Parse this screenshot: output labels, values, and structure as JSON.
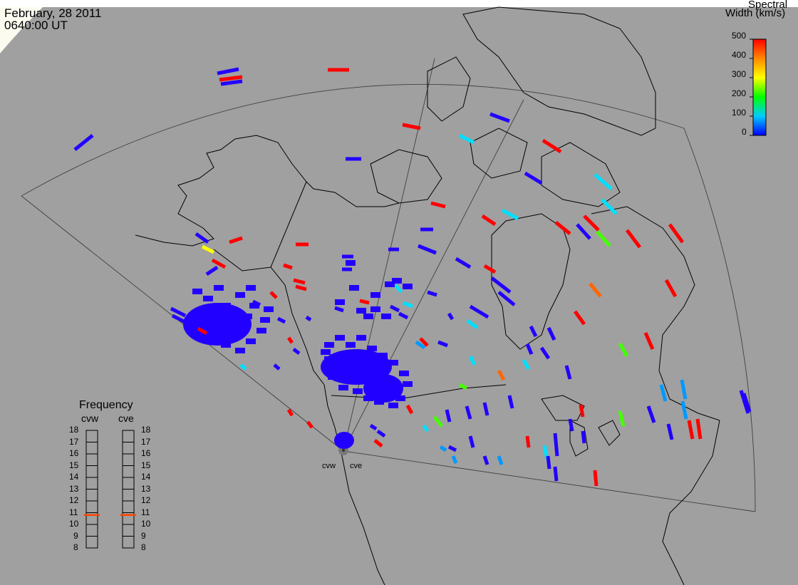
{
  "header": {
    "date": "February, 28 2011",
    "time": "0640:00 UT"
  },
  "colorbar": {
    "title_line1": "Spectral",
    "title_line2": "Width (km/s)",
    "ticks": [
      "500",
      "400",
      "300",
      "200",
      "100",
      "0"
    ],
    "min": 0,
    "max": 500
  },
  "frequency_panel": {
    "title": "Frequency",
    "radars": [
      "cvw",
      "cve"
    ],
    "ticks": [
      "18",
      "17",
      "16",
      "15",
      "14",
      "13",
      "12",
      "11",
      "10",
      "9",
      "8"
    ],
    "tick_values": [
      18,
      17,
      16,
      15,
      14,
      13,
      12,
      11,
      10,
      9,
      8
    ],
    "cvw_marker_mhz": 10.8,
    "cve_marker_mhz": 10.8,
    "marker_color": "#ff4400"
  },
  "radar_labels": {
    "cvw": "cvw",
    "cve": "cve"
  },
  "colors": {
    "background": "#a0a0a0",
    "blue": "#2200ff",
    "red": "#ff0000",
    "cyan": "#00e0ff",
    "green": "#44ff00",
    "orange": "#ff6600",
    "yellow": "#ffff00",
    "light_blue": "#0099ff"
  }
}
